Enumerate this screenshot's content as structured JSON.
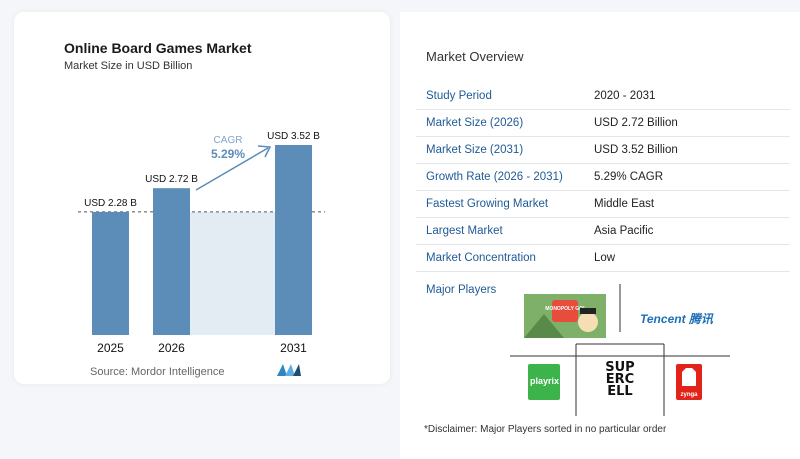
{
  "chart_card": {
    "title": "Online Board Games Market",
    "subtitle": "Market Size in USD Billion",
    "source": "Source: Mordor Intelligence"
  },
  "chart_data": {
    "type": "bar",
    "title": "Online Board Games Market",
    "subtitle": "Market Size in USD Billion",
    "categories": [
      "2025",
      "2026",
      "2031"
    ],
    "values": [
      2.28,
      2.72,
      3.52
    ],
    "data_labels": [
      "USD 2.28 B",
      "USD 2.72 B",
      "USD 3.52 B"
    ],
    "ylim": [
      0,
      3.7
    ],
    "grid": false,
    "annotation": {
      "label": "CAGR",
      "value": "5.29%"
    },
    "colors": {
      "bar": "#5b8db8",
      "band": "#e4ecf3",
      "arrow": "#5b8db8",
      "cagr": "#5b8db8"
    }
  },
  "overview": {
    "title": "Market Overview",
    "rows": [
      {
        "key": "Study Period",
        "value": "2020 - 2031"
      },
      {
        "key": "Market Size (2026)",
        "value": "USD 2.72 Billion"
      },
      {
        "key": "Market Size (2031)",
        "value": "USD 3.52 Billion"
      },
      {
        "key": "Growth Rate (2026 - 2031)",
        "value": "5.29% CAGR"
      },
      {
        "key": "Fastest Growing Market",
        "value": "Middle East"
      },
      {
        "key": "Largest Market",
        "value": "Asia Pacific"
      },
      {
        "key": "Market Concentration",
        "value": "Low"
      }
    ],
    "players_label": "Major Players",
    "players": [
      "Monopoly GO!",
      "Tencent",
      "Playrix",
      "Supercell",
      "Zynga"
    ],
    "player_texts": {
      "monopoly": "MONOPOLY GO!",
      "tencent": "Tencent 腾讯",
      "playrix": "playrix",
      "supercell_1": "SUP",
      "supercell_2": "ERC",
      "supercell_3": "ELL",
      "zynga": "zynga"
    },
    "disclaimer": "*Disclaimer: Major Players sorted in no particular order"
  }
}
